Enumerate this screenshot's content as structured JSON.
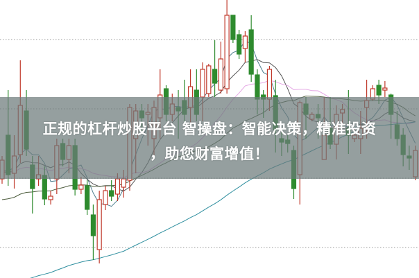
{
  "headline": {
    "line1": "正规的杠杆炒股平台 智操盘：智能决策，精准投资",
    "line2": "，助您财富增值！"
  },
  "colors": {
    "up": "#c0392b",
    "down": "#2e8b2e",
    "banner": "#6c7a7a",
    "grid": "#999999"
  },
  "chart_data": {
    "type": "candlestick",
    "title": "",
    "grid": true,
    "moving_averages": [
      "short",
      "medium",
      "long"
    ],
    "candles_ohlc": [
      [
        142,
        175,
        135,
        169
      ],
      [
        205,
        270,
        132,
        148
      ],
      [
        150,
        205,
        128,
        175
      ],
      [
        177,
        313,
        165,
        248
      ],
      [
        240,
        270,
        175,
        185
      ],
      [
        162,
        175,
        92,
        128
      ],
      [
        142,
        175,
        132,
        148
      ],
      [
        147,
        160,
        104,
        113
      ],
      [
        112,
        125,
        105,
        117
      ],
      [
        142,
        200,
        120,
        190
      ],
      [
        193,
        200,
        160,
        170
      ],
      [
        170,
        200,
        150,
        190
      ],
      [
        190,
        200,
        118,
        127
      ],
      [
        127,
        145,
        120,
        133
      ],
      [
        132,
        140,
        90,
        98
      ],
      [
        90,
        105,
        25,
        60
      ],
      [
        40,
        125,
        20,
        112
      ],
      [
        105,
        132,
        97,
        125
      ],
      [
        125,
        140,
        110,
        117
      ],
      [
        120,
        150,
        110,
        142
      ],
      [
        130,
        155,
        115,
        142
      ],
      [
        140,
        250,
        125,
        245
      ],
      [
        200,
        250,
        150,
        240
      ],
      [
        240,
        250,
        210,
        230
      ],
      [
        235,
        250,
        190,
        238
      ],
      [
        200,
        255,
        170,
        245
      ],
      [
        230,
        300,
        200,
        263
      ],
      [
        272,
        277,
        225,
        235
      ],
      [
        235,
        265,
        225,
        250
      ],
      [
        245,
        270,
        200,
        240
      ],
      [
        255,
        285,
        220,
        235
      ],
      [
        245,
        300,
        220,
        275
      ],
      [
        270,
        300,
        225,
        235
      ],
      [
        260,
        310,
        225,
        300
      ],
      [
        265,
        308,
        260,
        305
      ],
      [
        300,
        342,
        260,
        280
      ],
      [
        270,
        340,
        265,
        315
      ],
      [
        272,
        400,
        265,
        378
      ],
      [
        378,
        378,
        338,
        343
      ],
      [
        350,
        357,
        315,
        322
      ],
      [
        330,
        355,
        310,
        348
      ],
      [
        357,
        378,
        282,
        293
      ],
      [
        292,
        300,
        235,
        257
      ],
      [
        263,
        270,
        230,
        257
      ],
      [
        257,
        305,
        240,
        300
      ],
      [
        262,
        285,
        180,
        213
      ],
      [
        200,
        210,
        175,
        195
      ],
      [
        198,
        205,
        180,
        193
      ],
      [
        183,
        190,
        113,
        128
      ],
      [
        148,
        255,
        105,
        252
      ],
      [
        250,
        260,
        200,
        235
      ],
      [
        228,
        238,
        225,
        235
      ],
      [
        235,
        250,
        200,
        230
      ],
      [
        170,
        260,
        170,
        205
      ],
      [
        215,
        260,
        185,
        192
      ],
      [
        192,
        248,
        170,
        235
      ],
      [
        237,
        250,
        220,
        242
      ],
      [
        215,
        270,
        178,
        205
      ],
      [
        200,
        215,
        195,
        205
      ],
      [
        200,
        240,
        178,
        215
      ],
      [
        245,
        285,
        200,
        255
      ],
      [
        257,
        277,
        255,
        272
      ],
      [
        277,
        285,
        250,
        263
      ],
      [
        270,
        283,
        260,
        273
      ],
      [
        263,
        265,
        200,
        235
      ],
      [
        220,
        240,
        190,
        200
      ],
      [
        205,
        215,
        160,
        177
      ],
      [
        175,
        190,
        155,
        172
      ],
      [
        145,
        190,
        140,
        183
      ]
    ]
  }
}
